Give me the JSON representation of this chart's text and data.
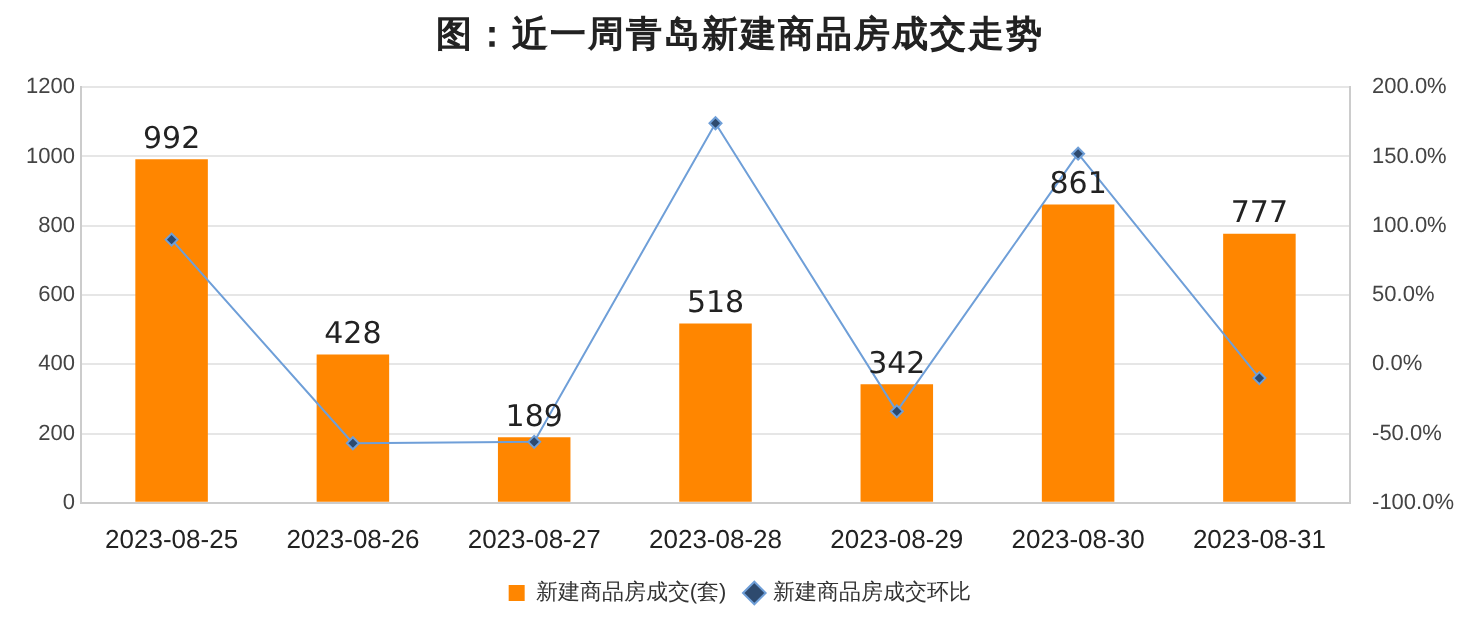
{
  "chart_data": {
    "type": "bar",
    "title": "图：近一周青岛新建商品房成交走势",
    "categories": [
      "2023-08-25",
      "2023-08-26",
      "2023-08-27",
      "2023-08-28",
      "2023-08-29",
      "2023-08-30",
      "2023-08-31"
    ],
    "series": [
      {
        "name": "新建商品房成交(套)",
        "color": "#ff8600",
        "values": [
          992,
          428,
          189,
          518,
          342,
          861,
          777
        ],
        "data_labels": true
      },
      {
        "name": "新建商品房成交环比",
        "type": "line",
        "axis": "y2",
        "color": "#6f9fd8",
        "marker": "diamond",
        "values": [
          90,
          -57,
          -56,
          174,
          -34,
          152,
          -10
        ]
      }
    ],
    "ylim": [
      0,
      1200
    ],
    "yticks": [
      0,
      200,
      400,
      600,
      800,
      1000,
      1200
    ],
    "y2lim": [
      -100,
      200
    ],
    "y2ticks": [
      {
        "value": -100,
        "label": "-100.0%"
      },
      {
        "value": -50,
        "label": "-50.0%"
      },
      {
        "value": 0,
        "label": "0.0%"
      },
      {
        "value": 50,
        "label": "50.0%"
      },
      {
        "value": 100,
        "label": "100.0%"
      },
      {
        "value": 150,
        "label": "150.0%"
      },
      {
        "value": 200,
        "label": "200.0%"
      }
    ],
    "grid": "y",
    "legend": "bottom"
  }
}
